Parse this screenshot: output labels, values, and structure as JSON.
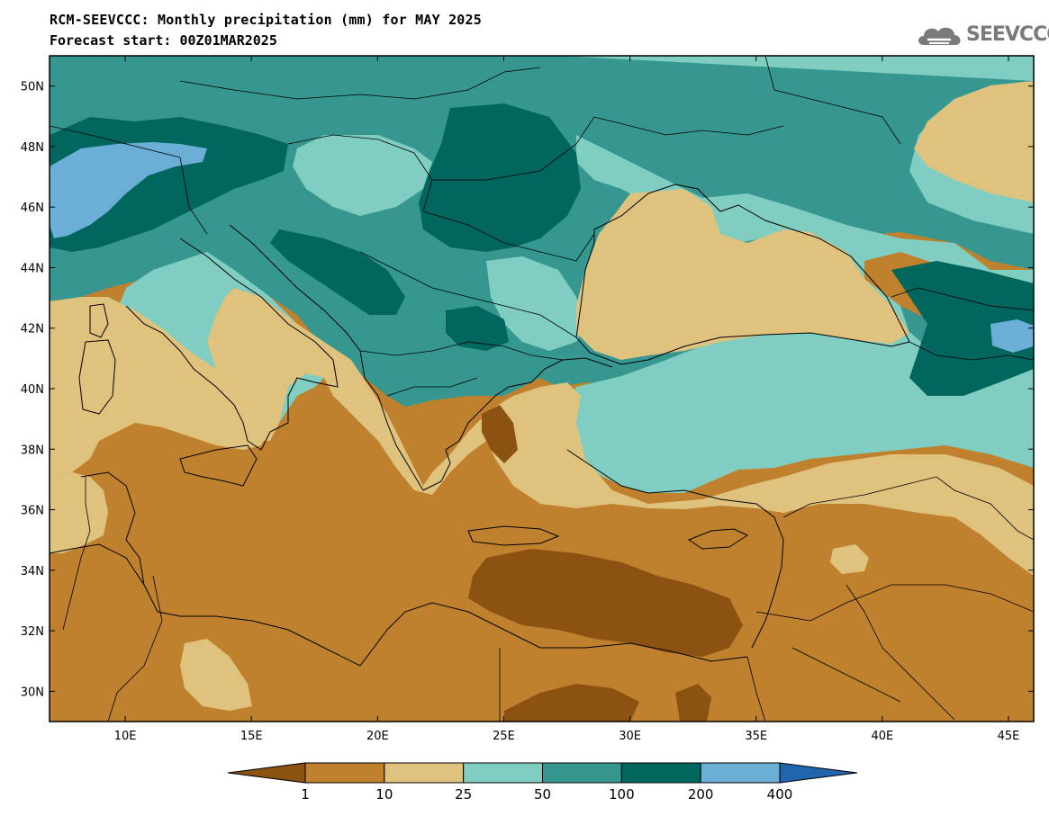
{
  "header": {
    "title": "RCM-SEEVCCC: Monthly precipitation (mm) for MAY 2025",
    "subtitle": "Forecast start: 00Z01MAR2025",
    "logo_text": "SEEVCCC"
  },
  "map": {
    "lon_range": [
      7,
      46
    ],
    "lat_range": [
      29,
      51
    ],
    "lon_ticks": [
      {
        "value": 10,
        "label": "10E"
      },
      {
        "value": 15,
        "label": "15E"
      },
      {
        "value": 20,
        "label": "20E"
      },
      {
        "value": 25,
        "label": "25E"
      },
      {
        "value": 30,
        "label": "30E"
      },
      {
        "value": 35,
        "label": "35E"
      },
      {
        "value": 40,
        "label": "40E"
      },
      {
        "value": 45,
        "label": "45E"
      }
    ],
    "lat_ticks": [
      {
        "value": 30,
        "label": "30N"
      },
      {
        "value": 32,
        "label": "32N"
      },
      {
        "value": 34,
        "label": "34N"
      },
      {
        "value": 36,
        "label": "36N"
      },
      {
        "value": 38,
        "label": "38N"
      },
      {
        "value": 40,
        "label": "40N"
      },
      {
        "value": 42,
        "label": "42N"
      },
      {
        "value": 44,
        "label": "44N"
      },
      {
        "value": 46,
        "label": "46N"
      },
      {
        "value": 48,
        "label": "48N"
      },
      {
        "value": 50,
        "label": "50N"
      }
    ]
  },
  "colorbar": {
    "bins": [
      {
        "color": "#8b5212"
      },
      {
        "color": "#bf812d"
      },
      {
        "color": "#dfc27d"
      },
      {
        "color": "#80cdc1"
      },
      {
        "color": "#35978f"
      },
      {
        "color": "#01665e"
      },
      {
        "color": "#6baed6"
      },
      {
        "color": "#2166ac"
      }
    ],
    "labels": [
      "1",
      "10",
      "25",
      "50",
      "100",
      "200",
      "400"
    ]
  }
}
